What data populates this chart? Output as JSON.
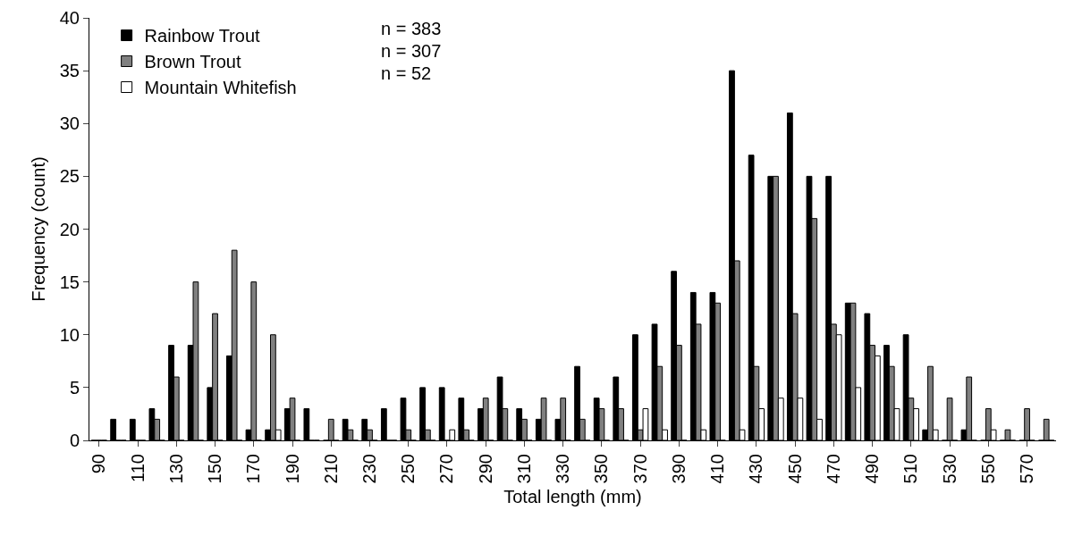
{
  "chart_data": {
    "type": "bar",
    "xlabel": "Total length (mm)",
    "ylabel": "Frequency (count)",
    "categories": [
      "90",
      null,
      "110",
      null,
      "130",
      null,
      "150",
      null,
      "170",
      null,
      "190",
      null,
      "210",
      null,
      "230",
      null,
      "250",
      null,
      "270",
      null,
      "290",
      null,
      "310",
      null,
      "330",
      null,
      "350",
      null,
      "370",
      null,
      "390",
      null,
      "410",
      null,
      "430",
      null,
      "450",
      null,
      "470",
      null,
      "490",
      null,
      "510",
      null,
      "530",
      null,
      "550",
      null,
      "570",
      null
    ],
    "series": [
      {
        "name": "Rainbow Trout",
        "color": "#000000",
        "values": [
          0,
          2,
          2,
          3,
          9,
          9,
          5,
          8,
          1,
          1,
          3,
          3,
          0,
          2,
          2,
          3,
          4,
          5,
          5,
          4,
          3,
          6,
          3,
          2,
          2,
          7,
          4,
          6,
          10,
          11,
          16,
          14,
          14,
          35,
          27,
          25,
          31,
          25,
          25,
          13,
          12,
          9,
          10,
          1,
          0,
          1,
          0,
          0,
          0,
          0
        ]
      },
      {
        "name": "Brown Trout",
        "color": "#808080",
        "values": [
          0,
          0,
          0,
          2,
          6,
          15,
          12,
          18,
          15,
          10,
          4,
          0,
          2,
          1,
          1,
          0,
          1,
          1,
          0,
          1,
          4,
          3,
          2,
          4,
          4,
          2,
          3,
          3,
          1,
          7,
          9,
          11,
          13,
          17,
          7,
          25,
          12,
          21,
          11,
          13,
          9,
          7,
          4,
          7,
          4,
          6,
          3,
          1,
          3,
          2
        ]
      },
      {
        "name": "Mountain Whitefish",
        "color": "#ffffff",
        "values": [
          0,
          0,
          0,
          0,
          0,
          0,
          0,
          0,
          0,
          1,
          0,
          0,
          0,
          0,
          0,
          0,
          0,
          0,
          1,
          0,
          0,
          0,
          0,
          0,
          0,
          0,
          0,
          0,
          3,
          1,
          0,
          1,
          0,
          1,
          3,
          4,
          4,
          2,
          10,
          5,
          8,
          3,
          3,
          1,
          0,
          0,
          1,
          0,
          0,
          0
        ]
      }
    ],
    "annotations": [
      "n = 383",
      "n = 307",
      "n = 52"
    ],
    "ylim": [
      0,
      40
    ],
    "yticks": [
      0,
      5,
      10,
      15,
      20,
      25,
      30,
      35,
      40
    ],
    "grid": false,
    "legend": "top left"
  }
}
